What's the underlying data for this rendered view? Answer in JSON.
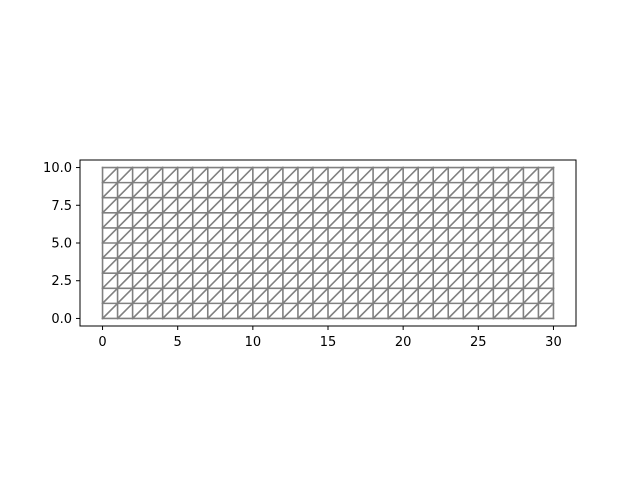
{
  "chart_data": {
    "type": "line",
    "title": "",
    "xlabel": "",
    "ylabel": "",
    "xlim": [
      -1.5,
      31.5
    ],
    "ylim": [
      -0.5,
      10.5
    ],
    "grid": false,
    "mesh": {
      "x_start": 0,
      "x_end": 30,
      "x_divisions": 30,
      "y_start": 0,
      "y_end": 10,
      "y_divisions": 10,
      "diagonals": "lower-left to upper-right in every cell"
    },
    "line_color": "#808080",
    "x_ticks": [
      0,
      5,
      10,
      15,
      20,
      25,
      30
    ],
    "y_ticks": [
      0.0,
      2.5,
      5.0,
      7.5,
      10.0
    ],
    "x_tick_labels": [
      "0",
      "5",
      "10",
      "15",
      "20",
      "25",
      "30"
    ],
    "y_tick_labels": [
      "0.0",
      "2.5",
      "5.0",
      "7.5",
      "10.0"
    ]
  }
}
